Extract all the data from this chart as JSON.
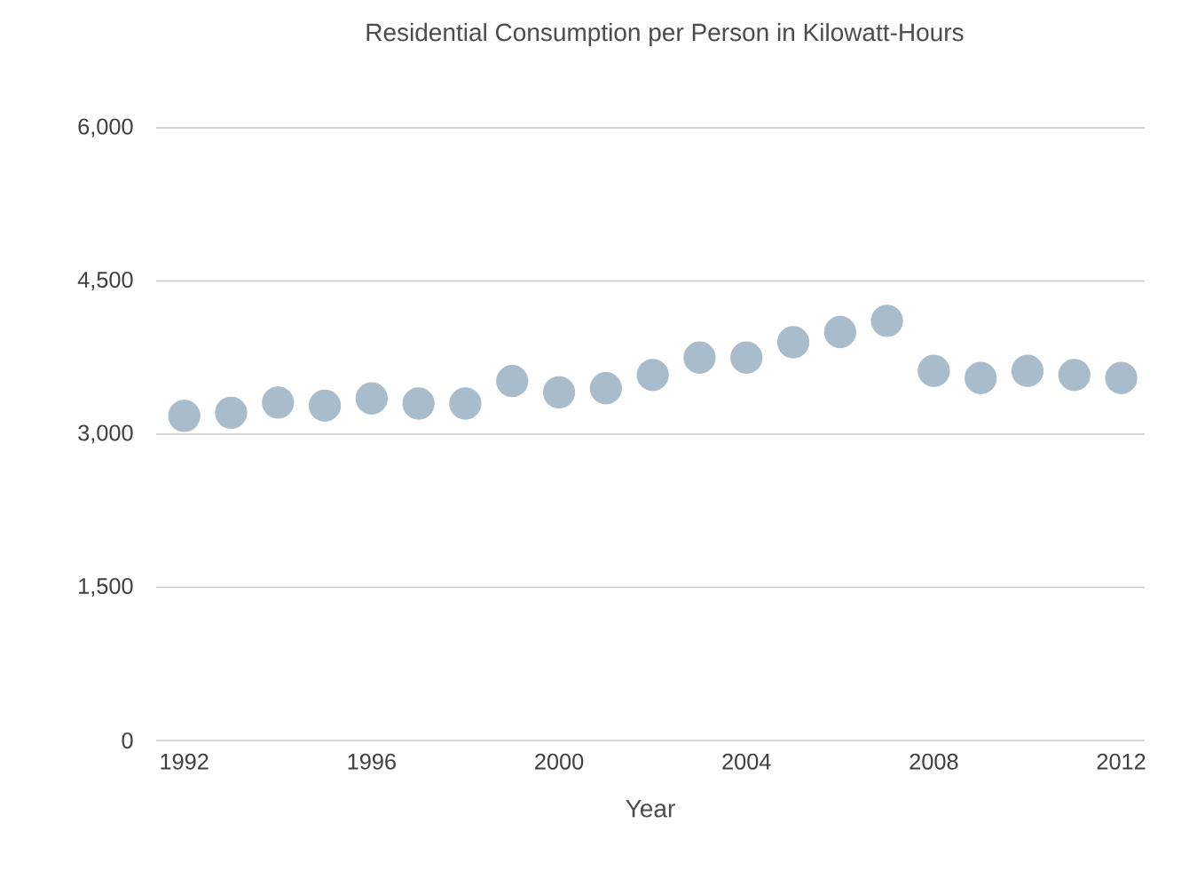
{
  "chart_data": {
    "type": "scatter",
    "title": "Residential Consumption per Person in Kilowatt-Hours",
    "xlabel": "Year",
    "x": [
      1992,
      1993,
      1994,
      1995,
      1996,
      1997,
      1998,
      1999,
      2000,
      2001,
      2002,
      2003,
      2004,
      2005,
      2006,
      2007,
      2008,
      2009,
      2010,
      2011,
      2012
    ],
    "series": [
      {
        "color": "#a9bccb",
        "values": [
          3180,
          3210,
          3310,
          3280,
          3350,
          3300,
          3300,
          3520,
          3410,
          3450,
          3580,
          3750,
          3750,
          3900,
          4000,
          4110,
          3620,
          3550,
          3620,
          3580,
          3550
        ]
      }
    ],
    "xlim": [
      1991.4,
      2012.5
    ],
    "ylim": [
      0,
      6000
    ],
    "xticks": [
      1992,
      1996,
      2000,
      2004,
      2008,
      2012
    ],
    "yticks": [
      {
        "value": 0,
        "label": "0"
      },
      {
        "value": 1500,
        "label": "1,500"
      },
      {
        "value": 3000,
        "label": "3,000"
      },
      {
        "value": 4500,
        "label": "4,500"
      },
      {
        "value": 6000,
        "label": "6,000"
      }
    ],
    "grid": "y",
    "marker": "circle"
  }
}
